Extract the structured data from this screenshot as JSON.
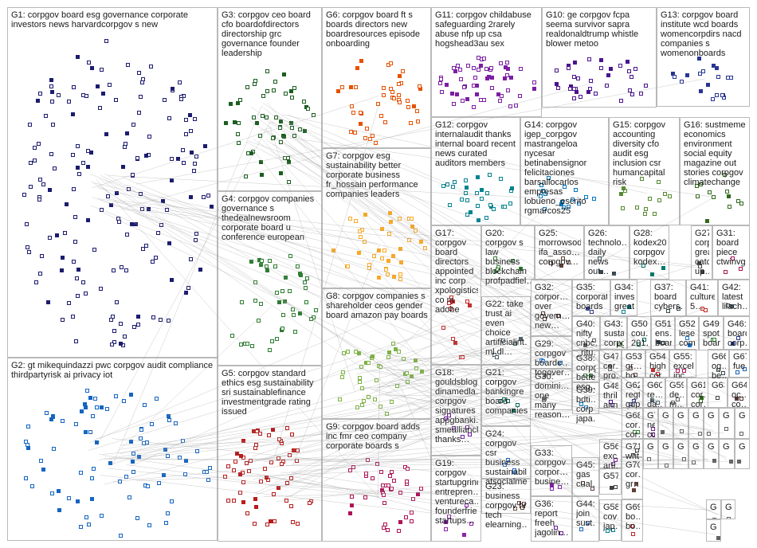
{
  "groups": [
    {
      "id": "G1",
      "label": "G1: corpgov board esg governance corporate investors news harvardcorpgov s new",
      "color": "#1c1c6e",
      "density": 170,
      "hub": true
    },
    {
      "id": "G2",
      "label": "G2: gt mikequindazzi pwc corpgov audit compliance thirdpartyrisk ai privacy iot",
      "color": "#1565c0",
      "density": 85,
      "hub": true
    },
    {
      "id": "G3",
      "label": "G3: corpgov ceo board cfo boardofdirectors directorship grc governance founder leadership",
      "color": "#1b5e20",
      "density": 55,
      "hub": true
    },
    {
      "id": "G4",
      "label": "G4: corpgov companies governance s thedealnewsroom corporate board u conference european",
      "color": "#2e7d32",
      "density": 45,
      "hub": false
    },
    {
      "id": "G5",
      "label": "G5: corpgov standard ethics esg sustainability sri sustainablefinance investmentgrade rating issued",
      "color": "#b71c1c",
      "density": 60,
      "hub": true
    },
    {
      "id": "G6",
      "label": "G6: corpgov board ft s boards directors new boardresources episode onboarding",
      "color": "#e65100",
      "density": 45,
      "hub": false
    },
    {
      "id": "G7",
      "label": "G7: corpgov esg sustainability better corporate business fr_hossain performance companies leaders",
      "color": "#f9a825",
      "density": 40,
      "hub": false
    },
    {
      "id": "G8",
      "label": "G8: corpgov companies s shareholder ceos gender board amazon pay boards",
      "color": "#7cb342",
      "density": 40,
      "hub": true
    },
    {
      "id": "G9",
      "label": "G9: corpgov board adds inc fmr ceo company corporate boards s",
      "color": "#ad1457",
      "density": 40,
      "hub": false
    },
    {
      "id": "G10",
      "label": "G10: ge corpgov fcpa seema survivor sapra realdonaldtrump whistle blower metoo",
      "color": "#4a148c",
      "density": 35,
      "hub": false
    },
    {
      "id": "G11",
      "label": "G11: corpgov childabuse safeguarding 2rarely abuse nfp up csa hogshead3au sex",
      "color": "#7b1fa2",
      "density": 55,
      "hub": false
    },
    {
      "id": "G12",
      "label": "G12: corpgov internalaudit thanks internal board recent news curated auditors members",
      "color": "#00838f",
      "density": 30,
      "hub": false
    },
    {
      "id": "G13",
      "label": "G13: corpgov board institute wcd boards womencorpdirs nacd companies s womenonboards",
      "color": "#283593",
      "density": 20,
      "hub": false
    },
    {
      "id": "G14",
      "label": "G14: corpgov igep_corpgov mastrangeloa nycesar betinabensignor felicitaciones barsallocarlos empresas lobueno_escrito rgmarcos25",
      "color": "#0277bd",
      "density": 16,
      "hub": false
    },
    {
      "id": "G15",
      "label": "G15: corpgov accounting diversity cfo audit esg inclusion csr humancapital risk",
      "color": "#558b2f",
      "density": 14,
      "hub": false
    },
    {
      "id": "G16",
      "label": "G16: sustmeme economics environment social equity magazine out stories corpgov climatechange",
      "color": "#33691e",
      "density": 12,
      "hub": false
    },
    {
      "id": "G17",
      "label": "G17: corpgov board directors appointed inc corp xpologistics co m adobe",
      "color": "#c62828",
      "density": 12,
      "hub": false
    },
    {
      "id": "G18",
      "label": "G18: gouldsblog dinamedla… corpgov signatures appgbanki… smealliancl… thanks…",
      "color": "#6a1b9a",
      "density": 6,
      "hub": false
    },
    {
      "id": "G19",
      "label": "G19: corpgov startupgrind entrepren… ventureca… founderfrie… startups…",
      "color": "#8e24aa",
      "density": 6,
      "hub": false
    },
    {
      "id": "G20",
      "label": "G20: corpgov s law business blockchain profpadfiel…",
      "color": "#2e7d32",
      "density": 6,
      "hub": false
    },
    {
      "id": "G21",
      "label": "G21: corpgov bankingre board companies…",
      "color": "#00695c",
      "density": 5,
      "hub": false
    },
    {
      "id": "G22",
      "label": "G22: take trust ai even choice artificialint… ml dl…",
      "color": "#455a64",
      "density": 5,
      "hub": false
    },
    {
      "id": "G23",
      "label": "G23: business corpgov hr tech elearning…",
      "color": "#6d4c41",
      "density": 4,
      "hub": false
    },
    {
      "id": "G24",
      "label": "G24: corpgov csr business sustainabil… atsocialme…",
      "color": "#1565c0",
      "density": 4,
      "hub": false
    },
    {
      "id": "G25",
      "label": "G25: morrowsod… ifa_asso… corpgov…",
      "color": "#5d4037",
      "density": 4,
      "hub": false
    },
    {
      "id": "G26",
      "label": "G26: technolo… daily news out…",
      "color": "#37474f",
      "density": 3,
      "hub": false
    },
    {
      "id": "G27",
      "label": "G27: corpgov great catch up…",
      "color": "#424242",
      "density": 3,
      "hub": false
    },
    {
      "id": "G28",
      "label": "G28: kodex20… corpgov kodex…",
      "color": "#00796b",
      "density": 3,
      "hub": false
    },
    {
      "id": "G29",
      "label": "G29: corpgov boarde… togover…",
      "color": "#1976d2",
      "density": 3,
      "hub": false
    },
    {
      "id": "G30",
      "label": "G30: domini… one many reason…",
      "color": "#616161",
      "density": 3,
      "hub": false
    },
    {
      "id": "G31",
      "label": "G31: board piece ctwinvg…",
      "color": "#ad1457",
      "density": 3,
      "hub": false
    },
    {
      "id": "G32",
      "label": "G32: corpor… over govern… new…",
      "color": "#4e342e",
      "density": 3,
      "hub": false
    },
    {
      "id": "G33",
      "label": "G33: corpgov corpor… busine…",
      "color": "#7b1fa2",
      "density": 3,
      "hub": false
    },
    {
      "id": "G34",
      "label": "G34: investors great",
      "color": "#00838f",
      "density": 2,
      "hub": false
    },
    {
      "id": "G35",
      "label": "G35: corporate boards",
      "color": "#283593",
      "density": 2,
      "hub": false
    },
    {
      "id": "G36",
      "label": "G36: report freeh jagolin…",
      "color": "#6a1b9a",
      "density": 2,
      "hub": false
    },
    {
      "id": "G37",
      "label": "G37: board cybers…",
      "color": "#37474f",
      "density": 2,
      "hub": false
    },
    {
      "id": "G38",
      "label": "G38: corpgov better esg…",
      "color": "#2e7d32",
      "density": 2,
      "hub": false
    },
    {
      "id": "G39",
      "label": "G39: bdti… corp japa…",
      "color": "#0277bd",
      "density": 2,
      "hub": false
    },
    {
      "id": "G40",
      "label": "G40: nifty cnbc… _ritu…",
      "color": "#616161",
      "density": 2,
      "hub": false
    },
    {
      "id": "G41",
      "label": "G41: culture 5…",
      "color": "#c62828",
      "density": 2,
      "hub": false
    },
    {
      "id": "G42",
      "label": "G42: latest lilach…",
      "color": "#455a64",
      "density": 2,
      "hub": false
    },
    {
      "id": "G43",
      "label": "G43: susta… corpg…",
      "color": "#33691e",
      "density": 2,
      "hub": false
    },
    {
      "id": "G44",
      "label": "G44: join sust…",
      "color": "#1565c0",
      "density": 2,
      "hub": false
    },
    {
      "id": "G45",
      "label": "G45: gas cual…",
      "color": "#5d4037",
      "density": 2,
      "hub": false
    },
    {
      "id": "G46",
      "label": "G46: board corp…",
      "color": "#283593",
      "density": 2,
      "hub": false
    },
    {
      "id": "G47",
      "label": "G47: cor… pro…",
      "color": "#616161",
      "density": 2,
      "hub": false
    },
    {
      "id": "G48",
      "label": "G48: thril… ann…",
      "color": "#4a148c",
      "density": 2,
      "hub": false
    },
    {
      "id": "G49",
      "label": "G49: spot… boar…",
      "color": "#2e7d32",
      "density": 2,
      "hub": false
    },
    {
      "id": "G50",
      "label": "G50: cou… 201…",
      "color": "#00695c",
      "density": 2,
      "hub": false
    },
    {
      "id": "G51",
      "label": "G51: ens… boar…",
      "color": "#37474f",
      "density": 2,
      "hub": false
    },
    {
      "id": "G52",
      "label": "G52: lese… comp…",
      "color": "#1976d2",
      "density": 2,
      "hub": false
    },
    {
      "id": "G53",
      "label": "G53: gr… bo…",
      "color": "#6d4c41",
      "density": 2,
      "hub": false
    },
    {
      "id": "G54",
      "label": "G54: high… cor…",
      "color": "#c62828",
      "density": 2,
      "hub": false
    },
    {
      "id": "G55",
      "label": "G55: excel… inc…",
      "color": "#ad1457",
      "density": 2,
      "hub": false
    },
    {
      "id": "G56",
      "label": "G56: exc… arti…",
      "color": "#7b1fa2",
      "density": 2,
      "hub": false
    },
    {
      "id": "G57",
      "label": "G57",
      "color": "#424242",
      "density": 2,
      "hub": false
    },
    {
      "id": "G58",
      "label": "G58: cov… jap…",
      "color": "#00838f",
      "density": 2,
      "hub": false
    },
    {
      "id": "G59",
      "label": "G59: de… m…",
      "color": "#616161",
      "density": 2,
      "hub": false
    },
    {
      "id": "G60",
      "label": "G60: re… da…",
      "color": "#455a64",
      "density": 2,
      "hub": false
    },
    {
      "id": "G61",
      "label": "G61: cor… cor…",
      "color": "#33691e",
      "density": 2,
      "hub": false
    },
    {
      "id": "G62",
      "label": "G62: regt… gdpr…",
      "color": "#283593",
      "density": 2,
      "hub": false
    },
    {
      "id": "G63",
      "label": "G63",
      "color": "#424242",
      "density": 1,
      "hub": false
    },
    {
      "id": "G64",
      "label": "G64: oc… co…",
      "color": "#4e342e",
      "density": 2,
      "hub": false
    },
    {
      "id": "G65",
      "label": "G65: bab… …",
      "color": "#6a1b9a",
      "density": 2,
      "hub": false
    },
    {
      "id": "G66",
      "label": "G66: og… be…",
      "color": "#37474f",
      "density": 2,
      "hub": false
    },
    {
      "id": "G67",
      "label": "G67: fue…",
      "color": "#1565c0",
      "density": 2,
      "hub": false
    },
    {
      "id": "G68",
      "label": "G68: cor… cor…",
      "color": "#2e7d32",
      "density": 2,
      "hub": false
    },
    {
      "id": "G69",
      "label": "G69: bo… bo…",
      "color": "#c62828",
      "density": 2,
      "hub": false
    },
    {
      "id": "G70",
      "label": "G70: cor… gr…",
      "color": "#5d4037",
      "density": 2,
      "hub": false
    },
    {
      "id": "G71",
      "label": "G71: writ…",
      "color": "#424242",
      "density": 2,
      "hub": false
    },
    {
      "id": "G72",
      "label": "G72: ne… co…",
      "color": "#7b1fa2",
      "density": 2,
      "hub": false
    },
    {
      "id": "G73",
      "label": "G",
      "color": "#616161",
      "density": 1,
      "hub": false
    },
    {
      "id": "G74",
      "label": "G",
      "color": "#616161",
      "density": 1,
      "hub": false
    },
    {
      "id": "G75",
      "label": "G",
      "color": "#616161",
      "density": 1,
      "hub": false
    },
    {
      "id": "G76",
      "label": "G",
      "color": "#616161",
      "density": 1,
      "hub": false
    },
    {
      "id": "G77",
      "label": "G",
      "color": "#616161",
      "density": 1,
      "hub": false
    },
    {
      "id": "G78",
      "label": "G",
      "color": "#616161",
      "density": 1,
      "hub": false
    },
    {
      "id": "G79",
      "label": "G",
      "color": "#616161",
      "density": 1,
      "hub": false
    },
    {
      "id": "G80",
      "label": "G",
      "color": "#616161",
      "density": 1,
      "hub": false
    },
    {
      "id": "G81",
      "label": "G",
      "color": "#616161",
      "density": 1,
      "hub": false
    },
    {
      "id": "G82",
      "label": "G",
      "color": "#616161",
      "density": 1,
      "hub": false
    },
    {
      "id": "G83",
      "label": "G",
      "color": "#616161",
      "density": 1,
      "hub": false
    },
    {
      "id": "G84",
      "label": "G",
      "color": "#616161",
      "density": 1,
      "hub": false
    },
    {
      "id": "G85",
      "label": "G",
      "color": "#616161",
      "density": 1,
      "hub": false
    },
    {
      "id": "G86",
      "label": "G",
      "color": "#616161",
      "density": 1,
      "hub": false
    },
    {
      "id": "G87",
      "label": "G",
      "color": "#616161",
      "density": 1,
      "hub": false
    },
    {
      "id": "G88",
      "label": "G8",
      "color": "#616161",
      "density": 1,
      "hub": false
    },
    {
      "id": "G89",
      "label": "G8",
      "color": "#616161",
      "density": 1,
      "hub": false
    },
    {
      "id": "G90",
      "label": "G8",
      "color": "#616161",
      "density": 1,
      "hub": false
    }
  ],
  "edge_color": "#9e9e9e"
}
